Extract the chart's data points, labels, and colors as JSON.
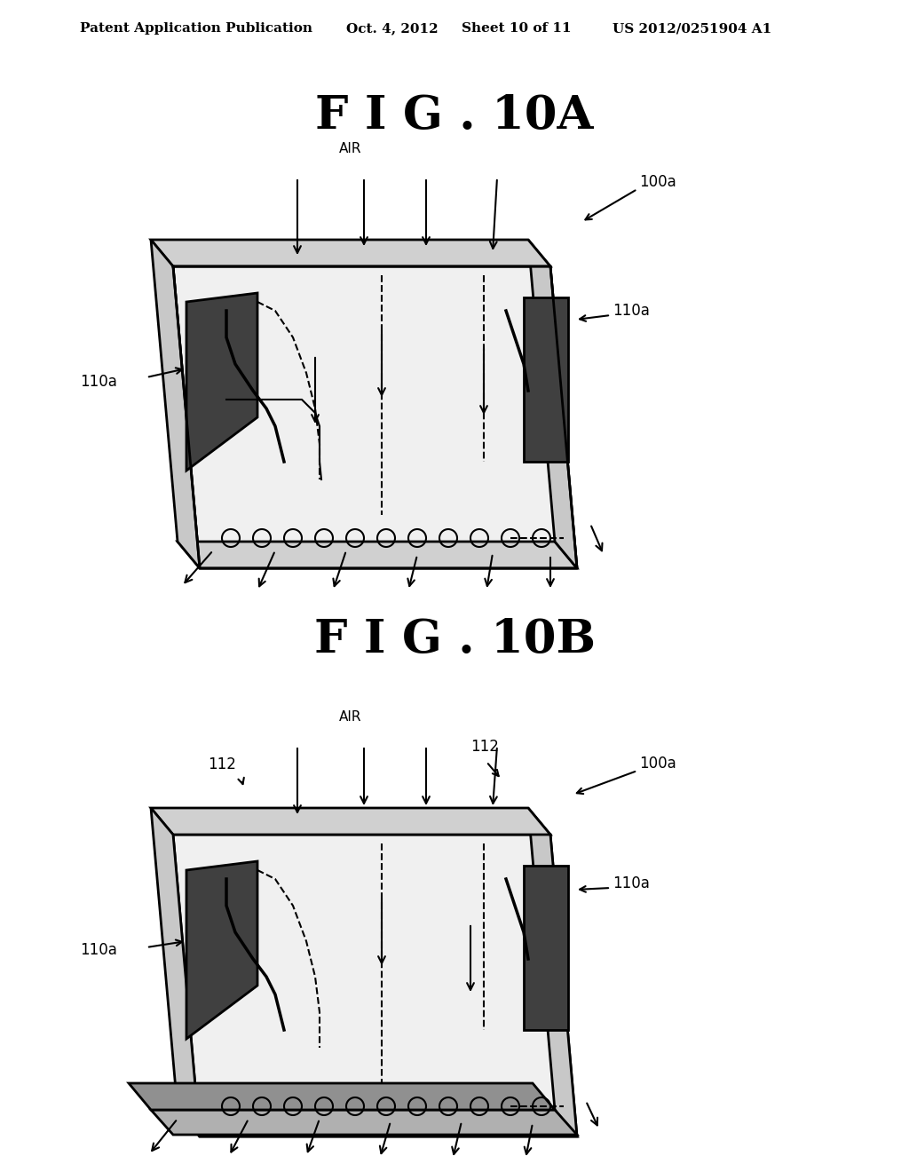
{
  "background_color": "#ffffff",
  "header_text": "Patent Application Publication",
  "header_date": "Oct. 4, 2012",
  "header_sheet": "Sheet 10 of 11",
  "header_patent": "US 2012/0251904 A1",
  "fig10A_title": "F I G . 10A",
  "fig10B_title": "F I G . 10B",
  "label_100a": "100a",
  "label_110a": "110a",
  "label_112": "112",
  "label_AIR": "AIR"
}
